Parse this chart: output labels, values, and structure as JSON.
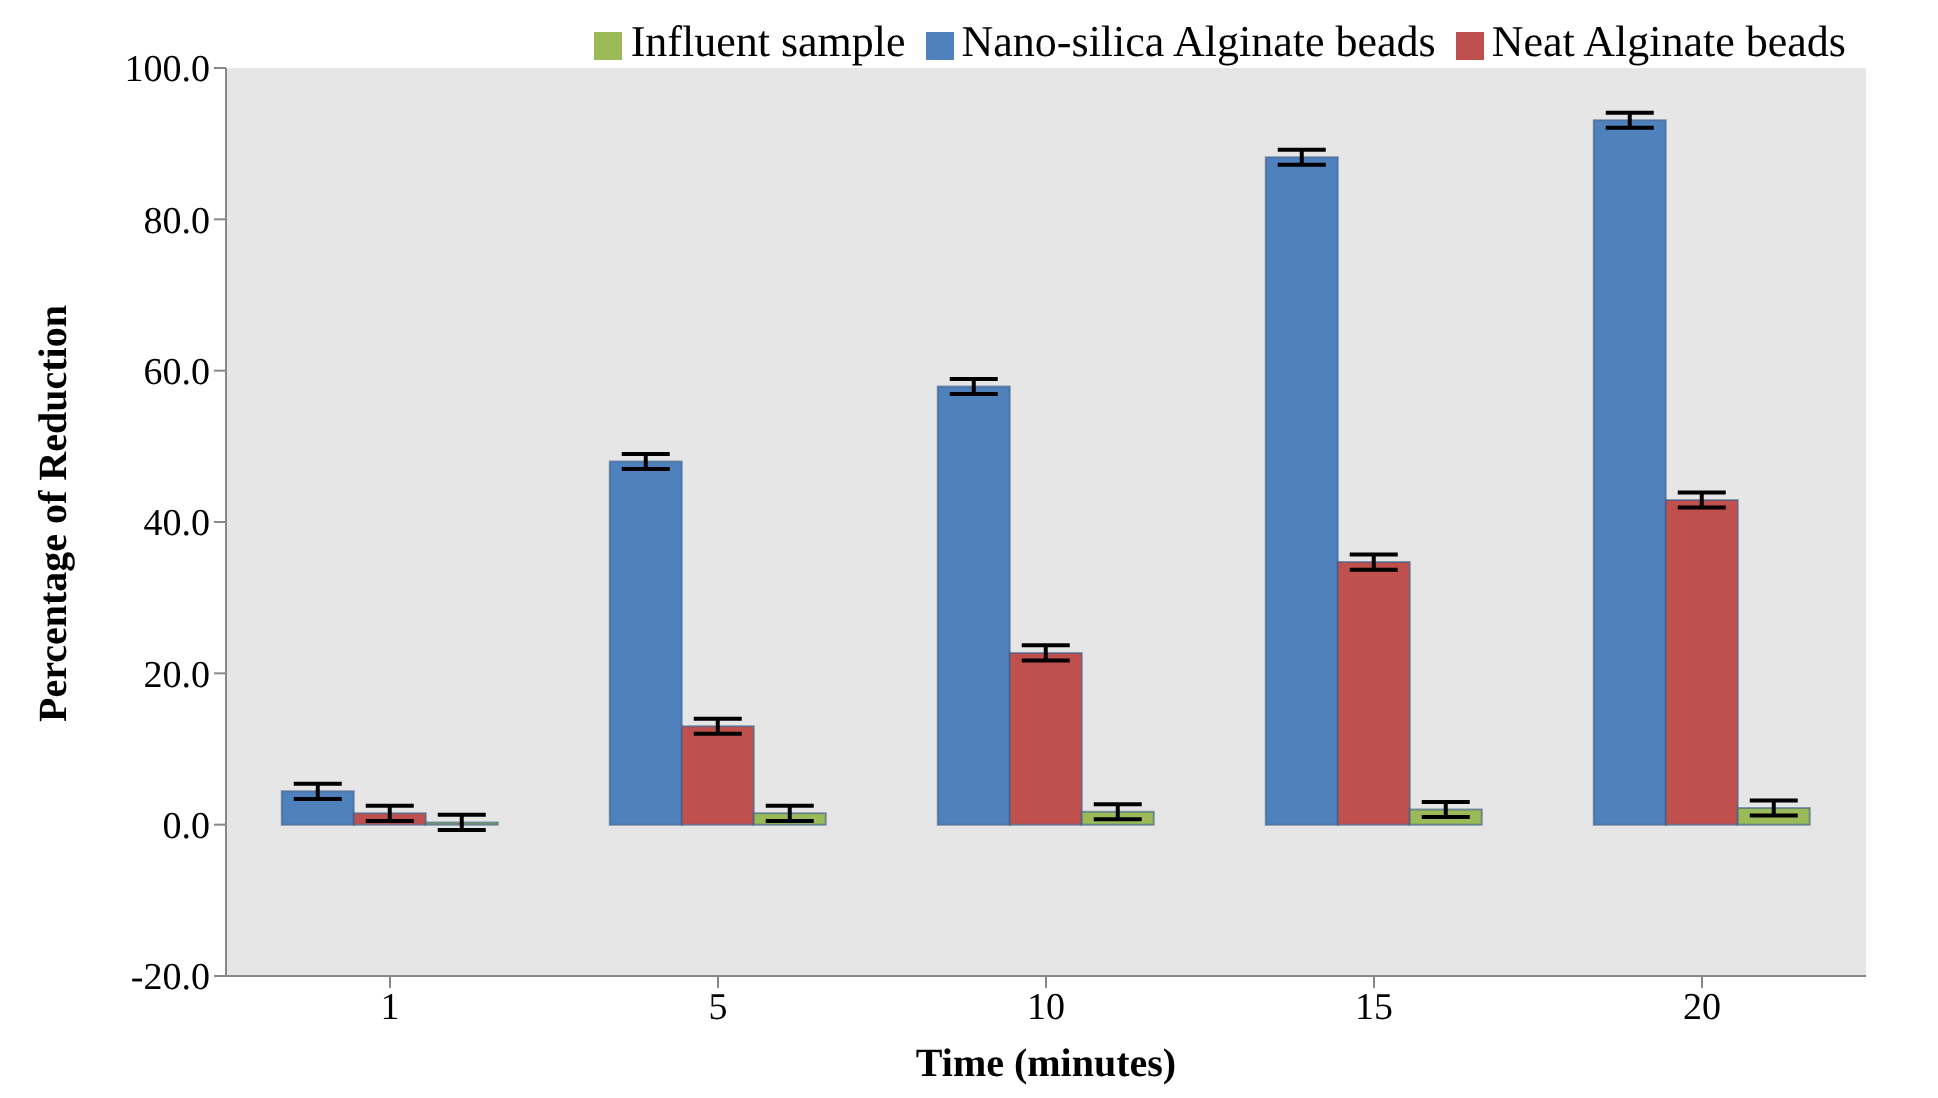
{
  "chart_data": {
    "type": "bar",
    "xlabel": "Time (minutes)",
    "ylabel": "Percentage of Reduction",
    "categories": [
      "1",
      "5",
      "10",
      "15",
      "20"
    ],
    "series": [
      {
        "name": "Nano-silica Alginate beads",
        "color": "#4f81bd",
        "values": [
          4.4,
          48.0,
          57.9,
          88.2,
          93.1
        ],
        "errors": [
          1,
          1,
          1,
          1,
          1
        ]
      },
      {
        "name": "Neat Alginate beads",
        "color": "#c0504d",
        "values": [
          1.5,
          13.0,
          22.7,
          34.7,
          42.9
        ],
        "errors": [
          1,
          1,
          1,
          1,
          1
        ]
      },
      {
        "name": "Influent sample",
        "color": "#9bbb59",
        "values": [
          0.3,
          1.5,
          1.7,
          2.0,
          2.2
        ],
        "errors": [
          1,
          1,
          1,
          1,
          1
        ]
      }
    ],
    "ylim": [
      -20,
      100
    ],
    "yticks": [
      {
        "value": -20,
        "label": "-20.0"
      },
      {
        "value": 0,
        "label": "0.0"
      },
      {
        "value": 20,
        "label": "20.0"
      },
      {
        "value": 40,
        "label": "40.0"
      },
      {
        "value": 60,
        "label": "60.0"
      },
      {
        "value": 80,
        "label": "80.0"
      },
      {
        "value": 100,
        "label": "100.0"
      }
    ],
    "legend": "top",
    "grid": false
  }
}
